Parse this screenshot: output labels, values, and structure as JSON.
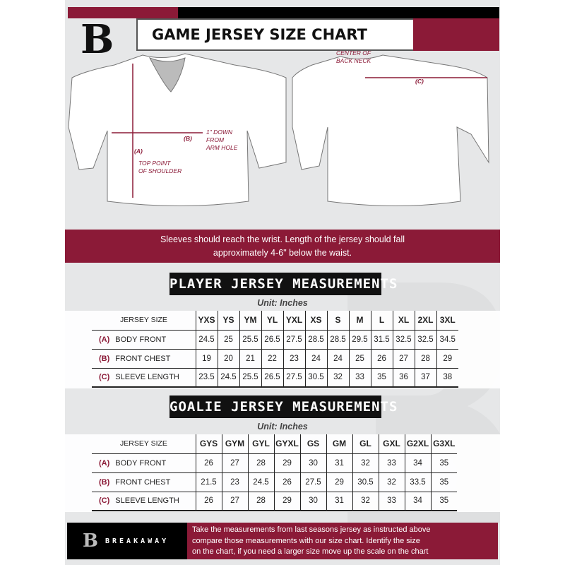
{
  "header": {
    "title": "GAME JERSEY SIZE CHART",
    "logo_letter": "B"
  },
  "diagram": {
    "center_back_neck": [
      "CENTER OF",
      "BACK NECK"
    ],
    "label_a": "(A)",
    "label_b": "(B)",
    "label_c": "(C)",
    "one_inch_down": [
      "1\" DOWN",
      "FROM",
      "ARM HOLE"
    ],
    "top_point": [
      "TOP POINT",
      "OF SHOULDER"
    ]
  },
  "banner": {
    "lines": [
      "Sleeves should reach the wrist. Length of the jersey should fall",
      "approximately 4-6\" below the waist."
    ]
  },
  "player": {
    "title": "PLAYER JERSEY MEASUREMENTS",
    "unit": "Unit: Inches",
    "header": "JERSEY SIZE",
    "sizes": [
      "YXS",
      "YS",
      "YM",
      "YL",
      "YXL",
      "XS",
      "S",
      "M",
      "L",
      "XL",
      "2XL",
      "3XL"
    ],
    "rows": [
      {
        "letter": "(A)",
        "label": "BODY FRONT",
        "values": [
          "24.5",
          "25",
          "25.5",
          "26.5",
          "27.5",
          "28.5",
          "28.5",
          "29.5",
          "31.5",
          "32.5",
          "32.5",
          "34.5"
        ]
      },
      {
        "letter": "(B)",
        "label": "FRONT CHEST",
        "values": [
          "19",
          "20",
          "21",
          "22",
          "23",
          "24",
          "24",
          "25",
          "26",
          "27",
          "28",
          "29"
        ]
      },
      {
        "letter": "(C)",
        "label": "SLEEVE LENGTH",
        "values": [
          "23.5",
          "24.5",
          "25.5",
          "26.5",
          "27.5",
          "30.5",
          "32",
          "33",
          "35",
          "36",
          "37",
          "38"
        ]
      }
    ]
  },
  "goalie": {
    "title": "GOALIE JERSEY MEASUREMENTS",
    "unit": "Unit: Inches",
    "header": "JERSEY SIZE",
    "sizes": [
      "GYS",
      "GYM",
      "GYL",
      "GYXL",
      "GS",
      "GM",
      "GL",
      "GXL",
      "G2XL",
      "G3XL"
    ],
    "rows": [
      {
        "letter": "(A)",
        "label": "BODY FRONT",
        "values": [
          "26",
          "27",
          "28",
          "29",
          "30",
          "31",
          "32",
          "33",
          "34",
          "35"
        ]
      },
      {
        "letter": "(B)",
        "label": "FRONT CHEST",
        "values": [
          "21.5",
          "23",
          "24.5",
          "26",
          "27.5",
          "29",
          "30.5",
          "32",
          "33.5",
          "35"
        ]
      },
      {
        "letter": "(C)",
        "label": "SLEEVE LENGTH",
        "values": [
          "26",
          "27",
          "28",
          "29",
          "30",
          "31",
          "32",
          "33",
          "34",
          "35"
        ]
      }
    ]
  },
  "footer": {
    "brand": "BREAKAWAY",
    "text": [
      "Take the measurements from last seasons jersey as instructed above",
      "compare those measurements  with our size chart. Identify the size",
      "on the chart, if you need a larger size move up the scale on the chart"
    ]
  },
  "colors": {
    "maroon": "#8b1a37",
    "black": "#111111",
    "background": "#e6e7e8"
  }
}
